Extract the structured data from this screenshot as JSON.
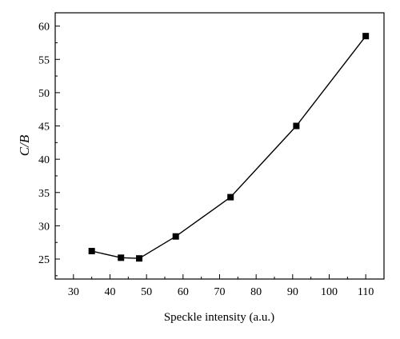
{
  "chart_data": {
    "type": "line",
    "title": "",
    "xlabel": "Speckle intensity (a.u.)",
    "ylabel": "C/B",
    "xlim": [
      25,
      115
    ],
    "ylim": [
      22,
      62
    ],
    "xticks": [
      30,
      40,
      50,
      60,
      70,
      80,
      90,
      100,
      110
    ],
    "yticks": [
      25,
      30,
      35,
      40,
      45,
      50,
      55,
      60
    ],
    "grid": false,
    "legend": "none",
    "marker": "square",
    "series": [
      {
        "color": "#000000",
        "x": [
          35,
          43,
          48,
          58,
          73,
          91,
          110
        ],
        "y": [
          26.2,
          25.2,
          25.1,
          28.4,
          34.3,
          45.0,
          58.5
        ]
      }
    ]
  }
}
